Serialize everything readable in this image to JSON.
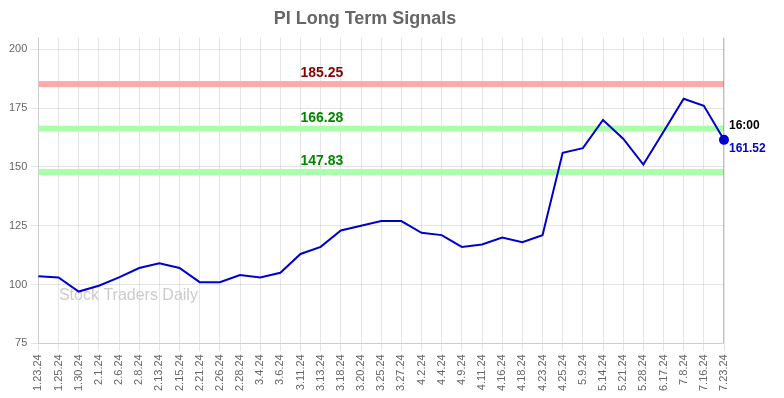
{
  "chart_data": {
    "type": "line",
    "title": "PI Long Term Signals",
    "categories": [
      "1.23.24",
      "1.25.24",
      "1.30.24",
      "2.1.24",
      "2.6.24",
      "2.8.24",
      "2.13.24",
      "2.15.24",
      "2.21.24",
      "2.26.24",
      "2.28.24",
      "3.4.24",
      "3.6.24",
      "3.11.24",
      "3.13.24",
      "3.18.24",
      "3.20.24",
      "3.25.24",
      "3.27.24",
      "4.2.24",
      "4.4.24",
      "4.9.24",
      "4.11.24",
      "4.16.24",
      "4.18.24",
      "4.23.24",
      "4.25.24",
      "5.9.24",
      "5.14.24",
      "5.21.24",
      "5.28.24",
      "6.17.24",
      "7.8.24",
      "7.16.24",
      "7.23.24"
    ],
    "values": [
      103.5,
      103,
      97,
      99.5,
      103,
      107,
      109,
      107,
      101,
      101,
      104,
      103,
      105,
      113,
      116,
      123,
      125,
      127,
      127,
      122,
      121,
      116,
      117,
      120,
      118,
      121,
      156,
      158,
      170,
      162,
      151,
      165,
      179,
      176,
      161.52
    ],
    "color": "#0000cc",
    "ylim": [
      75,
      205
    ],
    "yticks": [
      75,
      100,
      125,
      150,
      175,
      200
    ],
    "grid": true,
    "annotations": [
      {
        "type": "hline",
        "y": 185.25,
        "text": "185.25",
        "color": "#ffaaaa",
        "text_color": "#880000",
        "x": "3.11.24"
      },
      {
        "type": "hline",
        "y": 166.28,
        "text": "166.28",
        "color": "#aaffaa",
        "text_color": "#008800",
        "x": "3.11.24"
      },
      {
        "type": "hline",
        "y": 147.83,
        "text": "147.83",
        "color": "#aaffaa",
        "text_color": "#008800",
        "x": "3.11.24"
      },
      {
        "type": "vline",
        "x": "7.23.24",
        "color": "#808080"
      },
      {
        "type": "text",
        "text": "16:00",
        "x": "7.23.24",
        "y": 161.52,
        "position": "above",
        "text_color": "#000000"
      },
      {
        "type": "text",
        "text": "161.52",
        "x": "7.23.24",
        "y": 161.52,
        "position": "below",
        "text_color": "#0000cc"
      },
      {
        "type": "watermark",
        "text": "Stock Traders Daily",
        "text_color": "#cccccc"
      }
    ]
  }
}
